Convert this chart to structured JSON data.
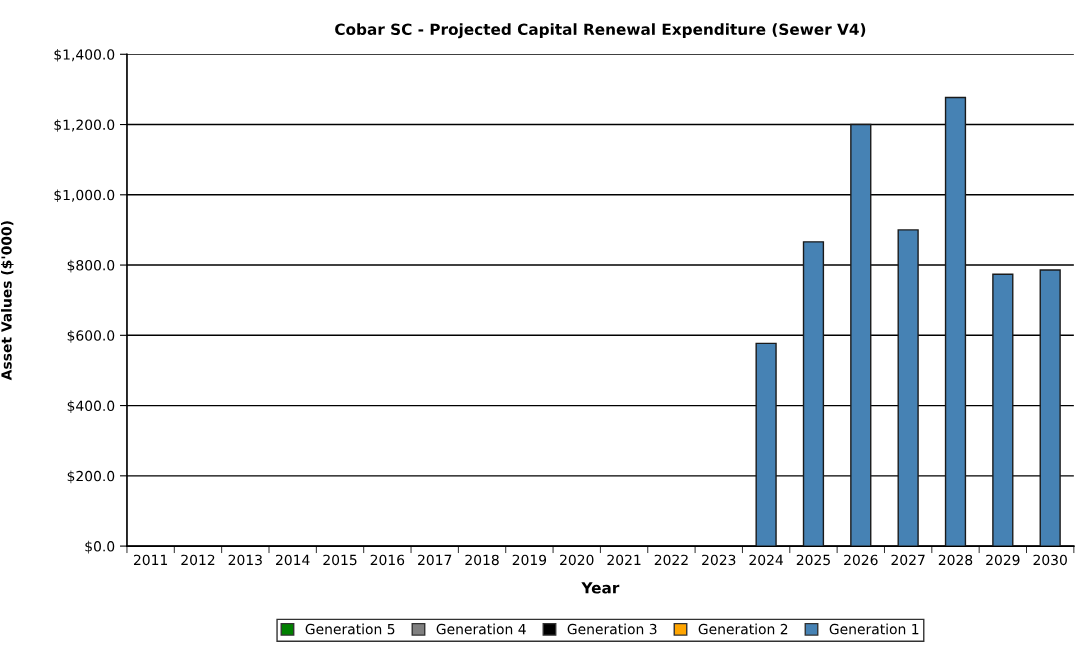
{
  "chart_data": {
    "type": "bar",
    "title": "Cobar SC - Projected Capital Renewal Expenditure (Sewer V4)",
    "xlabel": "Year",
    "ylabel": "Asset Values ($'000)",
    "categories": [
      "2011",
      "2012",
      "2013",
      "2014",
      "2015",
      "2016",
      "2017",
      "2018",
      "2019",
      "2020",
      "2021",
      "2022",
      "2023",
      "2024",
      "2025",
      "2026",
      "2027",
      "2028",
      "2029",
      "2030"
    ],
    "stacked": true,
    "series": [
      {
        "name": "Generation 1",
        "color": "#4682b4",
        "values": [
          null,
          null,
          null,
          null,
          null,
          null,
          null,
          null,
          null,
          null,
          null,
          null,
          null,
          577,
          866,
          1200,
          900,
          1277,
          774,
          786
        ]
      },
      {
        "name": "Generation 2",
        "color": "#ffa500",
        "values": [
          null,
          null,
          null,
          null,
          null,
          null,
          null,
          null,
          null,
          null,
          null,
          null,
          null,
          null,
          null,
          null,
          null,
          null,
          null,
          null
        ]
      },
      {
        "name": "Generation 3",
        "color": "#000000",
        "values": [
          null,
          null,
          null,
          null,
          null,
          null,
          null,
          null,
          null,
          null,
          null,
          null,
          null,
          null,
          null,
          null,
          null,
          null,
          null,
          null
        ]
      },
      {
        "name": "Generation 4",
        "color": "#808080",
        "values": [
          null,
          null,
          null,
          null,
          null,
          null,
          null,
          null,
          null,
          null,
          null,
          null,
          null,
          null,
          null,
          null,
          null,
          null,
          null,
          null
        ]
      },
      {
        "name": "Generation 5",
        "color": "#008000",
        "values": [
          null,
          null,
          null,
          null,
          null,
          null,
          null,
          null,
          null,
          null,
          null,
          null,
          null,
          null,
          null,
          null,
          null,
          null,
          null,
          null
        ]
      }
    ],
    "ylim": [
      0,
      1400
    ],
    "yticks": [
      {
        "value": 0,
        "label": "$0.0"
      },
      {
        "value": 200,
        "label": "$200.0"
      },
      {
        "value": 400,
        "label": "$400.0"
      },
      {
        "value": 600,
        "label": "$600.0"
      },
      {
        "value": 800,
        "label": "$800.0"
      },
      {
        "value": 1000,
        "label": "$1,000.0"
      },
      {
        "value": 1200,
        "label": "$1,200.0"
      },
      {
        "value": 1400,
        "label": "$1,400.0"
      }
    ],
    "grid": "y",
    "legend": "bottom"
  }
}
